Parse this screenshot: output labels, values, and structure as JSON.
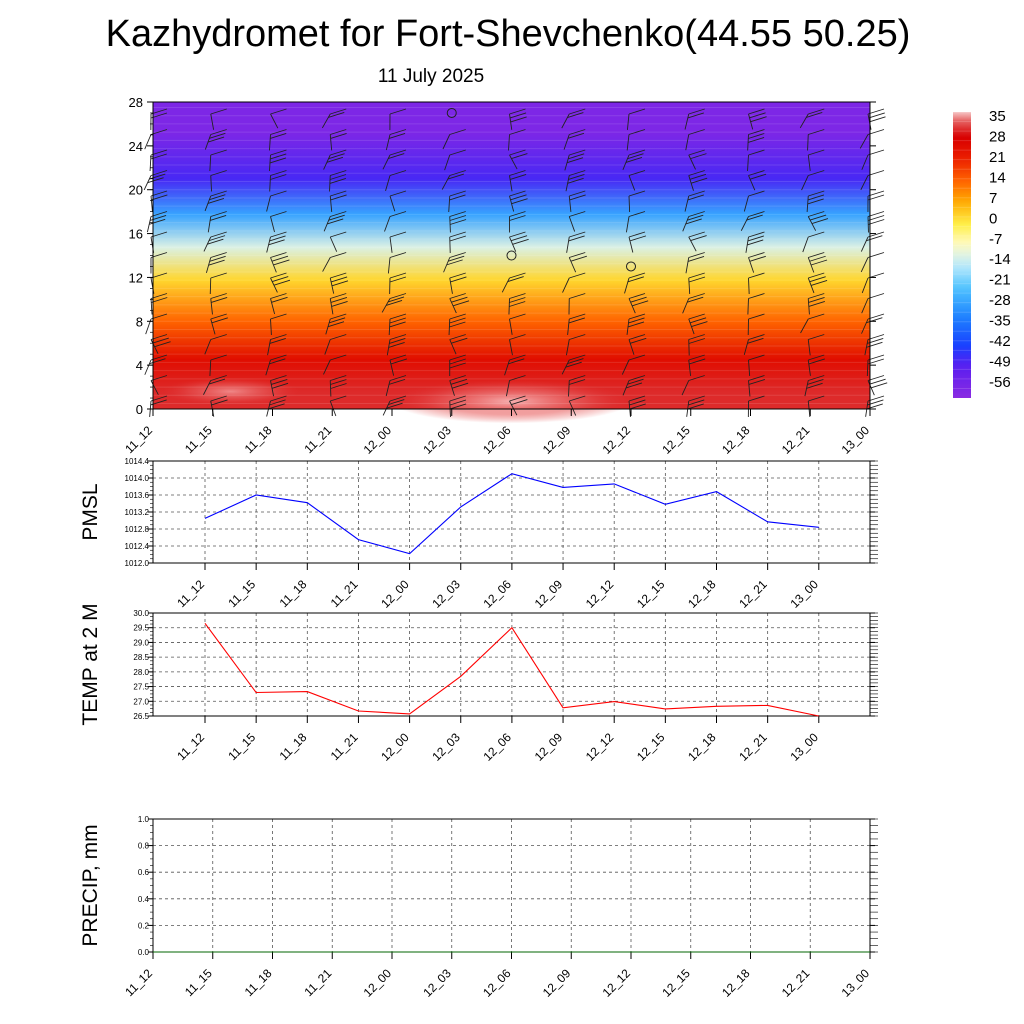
{
  "title": "Kazhydromet for Fort-Shevchenko(44.55 50.25)",
  "subtitle": "11 July 2025",
  "colorbar": {
    "labels": [
      "35",
      "28",
      "21",
      "14",
      "7",
      "0",
      "-7",
      "-14",
      "-21",
      "-28",
      "-35",
      "-42",
      "-49",
      "-56"
    ],
    "colors": {
      "top": "#f6c6c6",
      "red": "#d80000",
      "orange": "#ff8a00",
      "yellow": "#fff24a",
      "pale": "#fff8c8",
      "cyan": "#4fc3ff",
      "blue": "#1a40ff",
      "purple": "#8a2be2"
    }
  },
  "chart_data": [
    {
      "type": "heatmap",
      "description_var": "temperature cross-section with wind barbs",
      "x": [
        "11_12",
        "11_15",
        "11_18",
        "11_21",
        "12_00",
        "12_03",
        "12_06",
        "12_09",
        "12_12",
        "12_15",
        "12_18",
        "12_21",
        "13_00"
      ],
      "yticks": [
        "28",
        "24",
        "20",
        "16",
        "12",
        "8",
        "4",
        "0"
      ],
      "ylim": [
        0,
        28
      ],
      "bands": [
        {
          "y0": 0,
          "y1": 3,
          "value": 30
        },
        {
          "y0": 3,
          "y1": 6,
          "value": 24
        },
        {
          "y0": 6,
          "y1": 10,
          "value": 12
        },
        {
          "y0": 10,
          "y1": 13.5,
          "value": 0
        },
        {
          "y0": 13.5,
          "y1": 16,
          "value": -14
        },
        {
          "y0": 16,
          "y1": 19.5,
          "value": -30
        },
        {
          "y0": 19.5,
          "y1": 22.5,
          "value": -50
        },
        {
          "y0": 22.5,
          "y1": 28,
          "value": -60
        }
      ],
      "calm_circles": [
        {
          "x": "12_03",
          "y": 27
        },
        {
          "x": "12_06",
          "y": 14
        },
        {
          "x": "12_12",
          "y": 13
        }
      ]
    },
    {
      "type": "line",
      "ylabel": "PMSL",
      "x": [
        "11_12",
        "11_15",
        "11_18",
        "11_21",
        "12_00",
        "12_03",
        "12_06",
        "12_09",
        "12_12",
        "12_15",
        "12_18",
        "12_21",
        "13_00"
      ],
      "yticks": [
        "1014.4",
        "1014.0",
        "1013.6",
        "1013.2",
        "1012.8",
        "1012.4",
        "1012.0"
      ],
      "ylim": [
        1012.0,
        1014.4
      ],
      "series": [
        {
          "color": "#0000ff",
          "values": [
            1013.05,
            1013.6,
            1013.42,
            1012.55,
            1012.22,
            1013.32,
            1014.1,
            1013.78,
            1013.86,
            1013.38,
            1013.68,
            1012.97,
            1012.84
          ]
        }
      ]
    },
    {
      "type": "line",
      "ylabel": "TEMP at 2 M",
      "x": [
        "11_12",
        "11_15",
        "11_18",
        "11_21",
        "12_00",
        "12_03",
        "12_06",
        "12_09",
        "12_12",
        "12_15",
        "12_18",
        "12_21",
        "13_00"
      ],
      "yticks": [
        "30.0",
        "29.5",
        "29.0",
        "28.5",
        "28.0",
        "27.5",
        "27.0",
        "26.5"
      ],
      "ylim": [
        26.5,
        30.0
      ],
      "series": [
        {
          "color": "#ff0000",
          "values": [
            29.65,
            27.3,
            27.33,
            26.67,
            26.57,
            27.85,
            29.5,
            26.78,
            26.99,
            26.74,
            26.83,
            26.86,
            26.5
          ]
        }
      ]
    },
    {
      "type": "line",
      "ylabel": "PRECIP, mm",
      "x": [
        "11_12",
        "11_15",
        "11_18",
        "11_21",
        "12_00",
        "12_03",
        "12_06",
        "12_09",
        "12_12",
        "12_15",
        "12_18",
        "12_21",
        "13_00"
      ],
      "yticks": [
        "1.0",
        "0.8",
        "0.6",
        "0.4",
        "0.2",
        "0.0"
      ],
      "ylim": [
        0,
        1
      ],
      "series": [
        {
          "color": "#006400",
          "values": [
            0,
            0,
            0,
            0,
            0,
            0,
            0,
            0,
            0,
            0,
            0,
            0,
            0
          ]
        }
      ]
    }
  ]
}
